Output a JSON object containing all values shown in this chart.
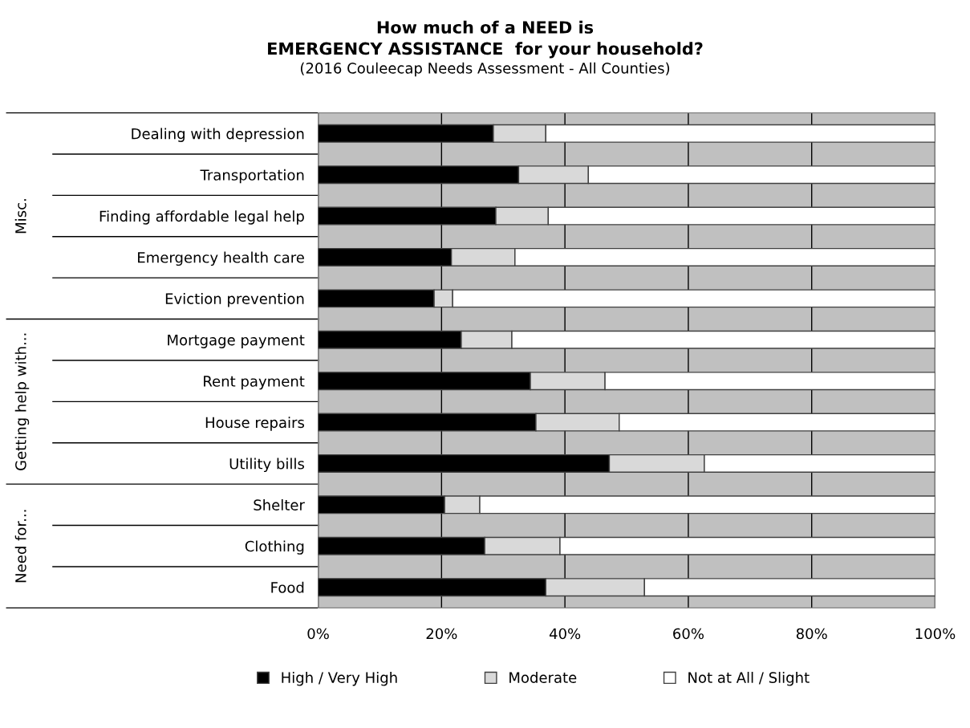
{
  "chart_data": {
    "type": "bar",
    "orientation": "horizontal",
    "stacked": true,
    "title": "How much of a NEED is\nEMERGENCY ASSISTANCE  for your household?",
    "subtitle": "(2016 Couleecap Needs Assessment - All Counties)",
    "categories": [
      "Dealing with depression",
      "Transportation",
      "Finding affordable legal help",
      "Emergency health care",
      "Eviction prevention",
      "Mortgage payment",
      "Rent payment",
      "House repairs",
      "Utility bills",
      "Shelter",
      "Clothing",
      "Food"
    ],
    "series": [
      {
        "name": "High / Very High",
        "color": "#000000",
        "values": [
          28.4,
          32.5,
          28.8,
          21.6,
          18.8,
          23.2,
          34.4,
          35.3,
          47.2,
          20.5,
          27.0,
          36.9
        ]
      },
      {
        "name": "Moderate",
        "color": "#d9d9d9",
        "values": [
          8.5,
          11.3,
          8.5,
          10.3,
          3.0,
          8.2,
          12.1,
          13.5,
          15.4,
          5.7,
          12.2,
          16.0
        ]
      },
      {
        "name": "Not at All / Slight",
        "color": "#ffffff",
        "values": [
          63.1,
          56.2,
          62.7,
          68.1,
          78.2,
          68.6,
          53.5,
          51.2,
          37.4,
          73.8,
          60.8,
          47.1
        ]
      }
    ],
    "annotations": [
      "Misc.",
      "Getting help with...",
      "Need for..."
    ],
    "xlim": [
      0,
      100
    ],
    "xticks": [
      {
        "value": 0,
        "label": "0%"
      },
      {
        "value": 20,
        "label": "20%"
      },
      {
        "value": 40,
        "label": "40%"
      },
      {
        "value": 60,
        "label": "60%"
      },
      {
        "value": 80,
        "label": "80%"
      },
      {
        "value": 100,
        "label": "100%"
      }
    ],
    "grid": "x",
    "legend": "bottom"
  }
}
